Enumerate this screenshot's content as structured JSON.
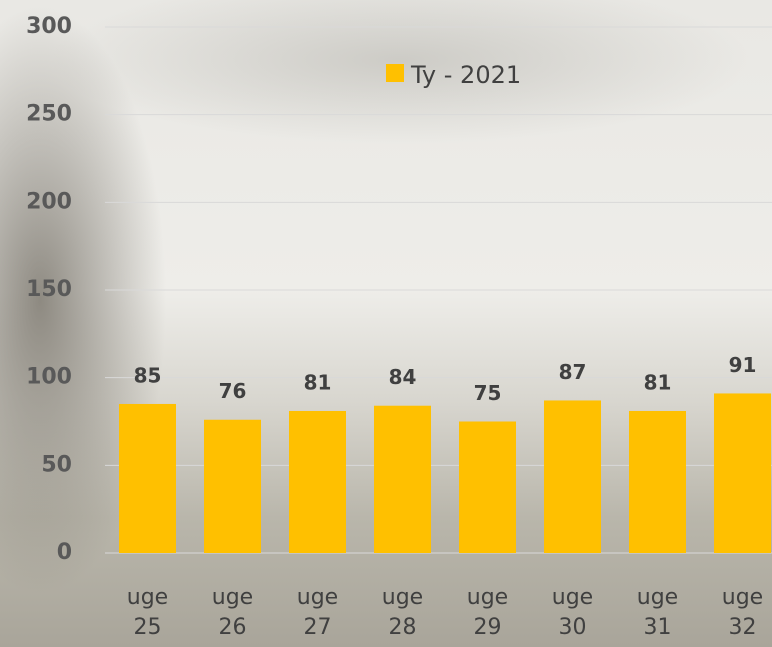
{
  "chart_data": {
    "type": "bar",
    "categories": [
      "uge 25",
      "uge 26",
      "uge 27",
      "uge 28",
      "uge 29",
      "uge 30",
      "uge 31",
      "uge 32"
    ],
    "series": [
      {
        "name": "Ty - 2021",
        "color": "#FFC000",
        "values": [
          85,
          76,
          81,
          84,
          75,
          87,
          81,
          91
        ]
      }
    ],
    "ylim": [
      0,
      300
    ],
    "yticks": [
      0,
      50,
      100,
      150,
      200,
      250,
      300
    ],
    "grid": true,
    "legend": "top"
  }
}
